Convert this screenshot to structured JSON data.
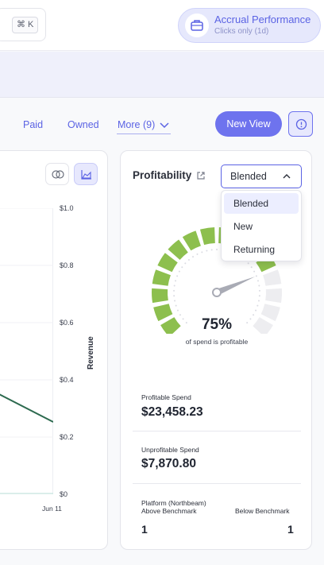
{
  "search": {
    "shortcut": "⌘ K"
  },
  "accrual": {
    "title": "Accrual Performance",
    "subtitle": "Clicks only (1d)"
  },
  "tabs": {
    "paid": "Paid",
    "owned": "Owned",
    "more": "More (9)"
  },
  "new_view_label": "New View",
  "revenue_chart": {
    "ylabel": "Revenue",
    "y_ticks": [
      "$1.0",
      "$0.8",
      "$0.6",
      "$0.4",
      "$0.2",
      "$0"
    ],
    "x_tick": "Jun 11"
  },
  "profitability": {
    "title": "Profitability",
    "selected": "Blended",
    "options": [
      "Blended",
      "New",
      "Returning"
    ],
    "percent": "75%",
    "percent_caption": "of spend is profitable",
    "gauge_value": 0.75,
    "profitable_label": "Profitable Spend",
    "profitable_value": "$23,458.23",
    "unprofitable_label": "Unprofitable Spend",
    "unprofitable_value": "$7,870.80",
    "platform_label_1": "Platform (Northbeam)",
    "platform_label_2": "Above Benchmark",
    "below_label": "Below Benchmark",
    "above_count": "1",
    "below_count": "1"
  },
  "colors": {
    "accent": "#5b63e4",
    "gauge_green": "#8dbf4e",
    "gauge_gray": "#ededf0",
    "line": "#2d6a4f"
  }
}
